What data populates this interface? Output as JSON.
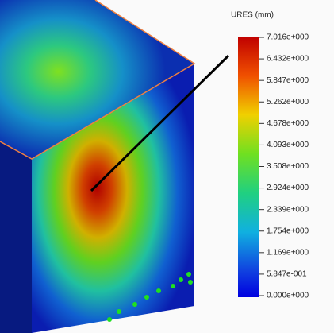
{
  "legend": {
    "title": "URES (mm)",
    "labels": [
      "7.016e+000",
      "6.432e+000",
      "5.847e+000",
      "5.262e+000",
      "4.678e+000",
      "4.093e+000",
      "3.508e+000",
      "2.924e+000",
      "2.339e+000",
      "1.754e+000",
      "1.169e+000",
      "5.847e-001",
      "0.000e+000"
    ]
  }
}
